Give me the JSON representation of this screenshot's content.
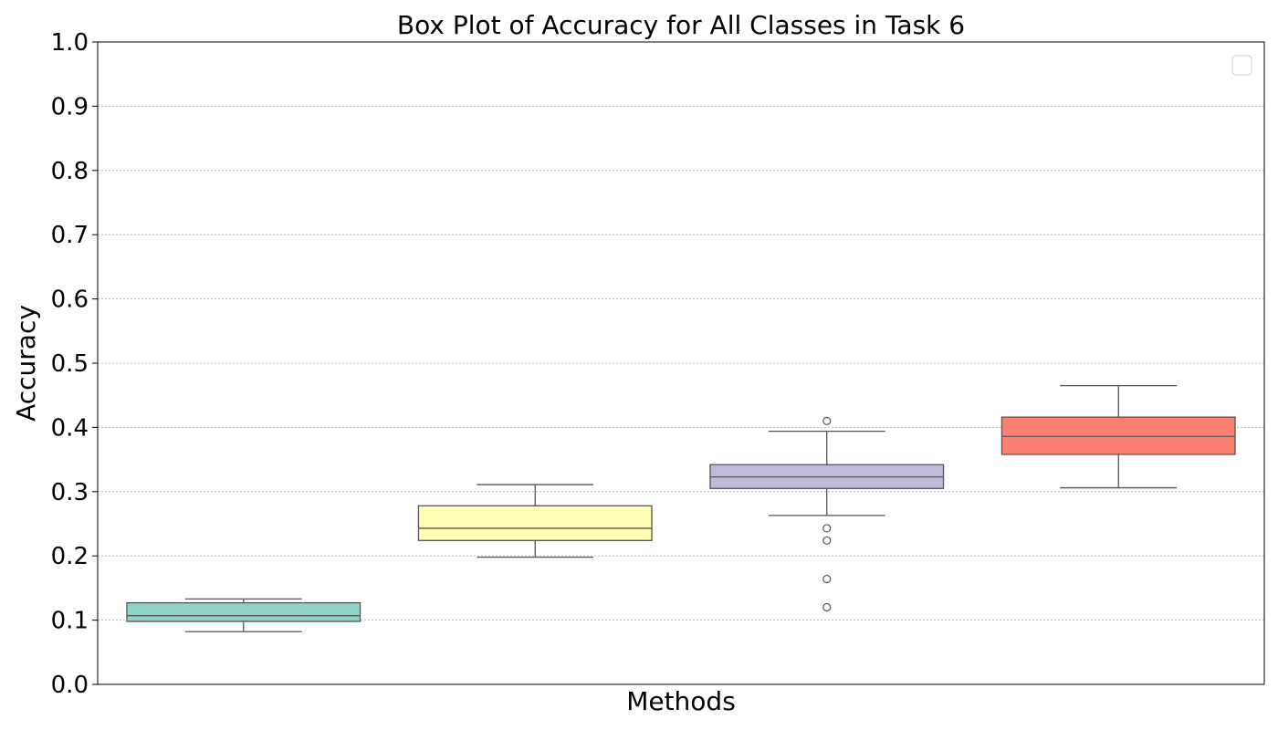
{
  "chart_data": {
    "type": "box",
    "title": "Box Plot of Accuracy for All Classes in Task 6",
    "xlabel": "Methods",
    "ylabel": "Accuracy",
    "ylim": [
      0.0,
      1.0
    ],
    "yticks": [
      "0.0",
      "0.1",
      "0.2",
      "0.3",
      "0.4",
      "0.5",
      "0.6",
      "0.7",
      "0.8",
      "0.9",
      "1.0"
    ],
    "grid": "horizontal dotted",
    "legend": {
      "placement": "top-right",
      "entries": []
    },
    "boxes": [
      {
        "color": "#8dd3c7",
        "whisker_low": 0.082,
        "q1": 0.098,
        "median": 0.107,
        "q3": 0.127,
        "whisker_high": 0.133,
        "outliers": []
      },
      {
        "color": "#ffffb3",
        "whisker_low": 0.198,
        "q1": 0.224,
        "median": 0.243,
        "q3": 0.278,
        "whisker_high": 0.311,
        "outliers": []
      },
      {
        "color": "#bebada",
        "whisker_low": 0.263,
        "q1": 0.305,
        "median": 0.323,
        "q3": 0.342,
        "whisker_high": 0.394,
        "outliers": [
          0.41,
          0.243,
          0.224,
          0.164,
          0.12
        ]
      },
      {
        "color": "#fb8072",
        "whisker_low": 0.306,
        "q1": 0.358,
        "median": 0.386,
        "q3": 0.416,
        "whisker_high": 0.465,
        "outliers": []
      }
    ]
  }
}
